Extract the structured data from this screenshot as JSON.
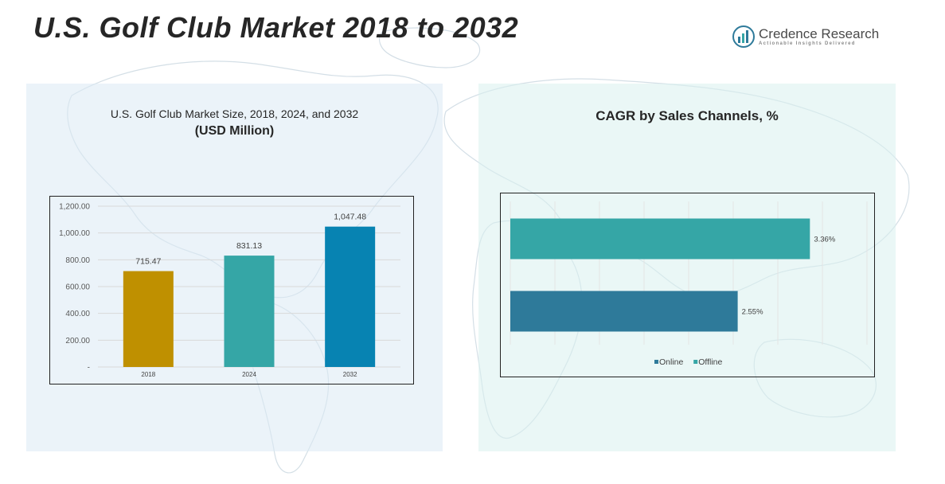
{
  "page": {
    "title": "U.S. Golf Club Market 2018 to 2032"
  },
  "brand": {
    "name": "Credence Research",
    "tagline": "Actionable Insights Delivered"
  },
  "left_panel": {
    "title": "U.S. Golf Club Market Size, 2018, 2024, and 2032",
    "subtitle": "(USD Million)"
  },
  "right_panel": {
    "title": "CAGR by Sales Channels, %"
  },
  "colors": {
    "bar_2018": "#BF9000",
    "bar_2024": "#35A6A6",
    "bar_2032": "#0783B2",
    "online": "#2E7A9A",
    "offline": "#35A6A6"
  },
  "chart_data": [
    {
      "type": "bar",
      "categories": [
        "2018",
        "2024",
        "2032"
      ],
      "values": [
        715.47,
        831.13,
        1047.48
      ],
      "value_labels": [
        "715.47",
        "831.13",
        "1,047.48"
      ],
      "title": "U.S. Golf Club Market Size, 2018, 2024, and 2032",
      "ylabel": "USD Million",
      "ylim": [
        0,
        1200
      ],
      "yticks": [
        0,
        200,
        400,
        600,
        800,
        1000,
        1200
      ],
      "ytick_labels": [
        "-",
        "200.00",
        "400.00",
        "600.00",
        "800.00",
        "1,000.00",
        "1,200.00"
      ],
      "grid": true,
      "legend": "none"
    },
    {
      "type": "bar",
      "orientation": "horizontal",
      "title": "CAGR by Sales Channels, %",
      "categories": [
        "Offline",
        "Online"
      ],
      "values": [
        3.36,
        2.55
      ],
      "value_labels": [
        "3.36%",
        "2.55%"
      ],
      "xlim": [
        0,
        4
      ],
      "grid": true,
      "legend": "bottom",
      "legend_entries": [
        "Online",
        "Offline"
      ]
    }
  ]
}
